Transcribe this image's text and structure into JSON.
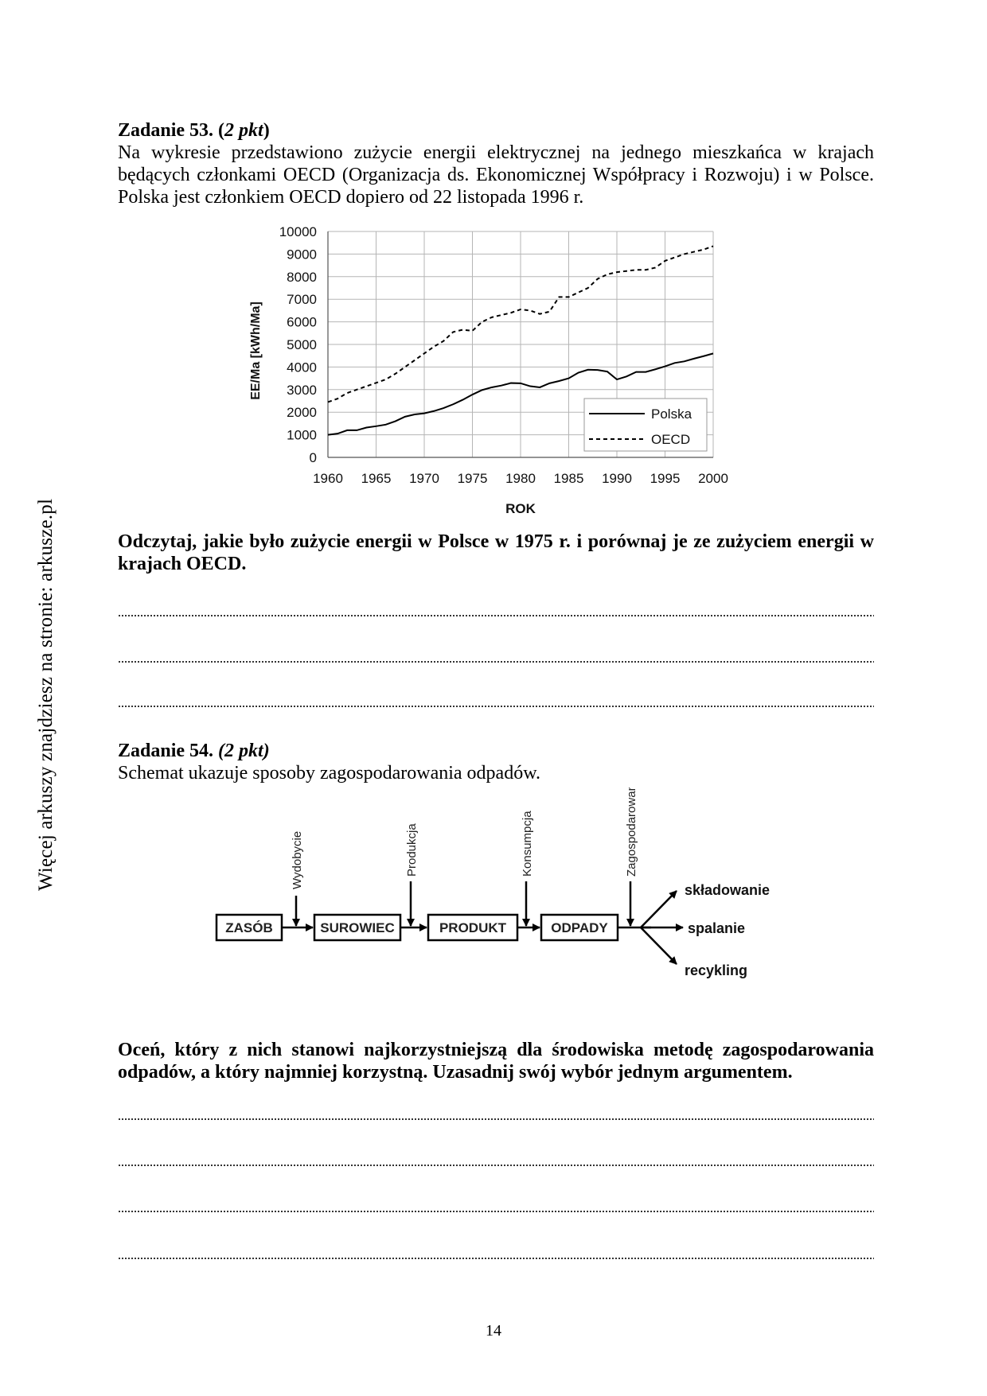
{
  "side_note": "Więcej arkuszy znajdziesz na stronie: arkusze.pl",
  "task53": {
    "title": "Zadanie 53.",
    "points": "2 pkt",
    "text": "Na wykresie przedstawiono zużycie energii elektrycznej na jednego mieszkańca w krajach będących członkami OECD (Organizacja ds. Ekonomicznej Współpracy i Rozwoju) i w Polsce. Polska jest członkiem OECD dopiero od 22 listopada 1996 r.",
    "question": "Odczytaj, jakie było zużycie energii w Polsce w 1975 r. i porównaj je ze zużyciem energii w krajach OECD."
  },
  "chart_data": {
    "type": "line",
    "title": "",
    "xlabel": "ROK",
    "ylabel": "EE/Ma [kWh/Ma]",
    "xlim": [
      1960,
      2000
    ],
    "ylim": [
      0,
      10000
    ],
    "x_ticks": [
      "1960",
      "1965",
      "1970",
      "1975",
      "1980",
      "1985",
      "1990",
      "1995",
      "2000"
    ],
    "y_ticks": [
      "0",
      "1000",
      "2000",
      "3000",
      "4000",
      "5000",
      "6000",
      "7000",
      "8000",
      "9000",
      "10000"
    ],
    "grid": true,
    "legend": "bottom-right",
    "x": [
      1960,
      1961,
      1962,
      1963,
      1964,
      1965,
      1966,
      1967,
      1968,
      1969,
      1970,
      1971,
      1972,
      1973,
      1974,
      1975,
      1976,
      1977,
      1978,
      1979,
      1980,
      1981,
      1982,
      1983,
      1984,
      1985,
      1986,
      1987,
      1988,
      1989,
      1990,
      1991,
      1992,
      1993,
      1994,
      1995,
      1996,
      1997,
      1998,
      1999,
      2000
    ],
    "series": [
      {
        "name": "Polska",
        "style": "solid",
        "values": [
          1000,
          1050,
          1200,
          1200,
          1320,
          1380,
          1450,
          1600,
          1800,
          1900,
          1950,
          2050,
          2180,
          2350,
          2550,
          2780,
          2980,
          3100,
          3180,
          3290,
          3280,
          3150,
          3100,
          3280,
          3380,
          3500,
          3750,
          3880,
          3870,
          3800,
          3450,
          3580,
          3780,
          3780,
          3900,
          4030,
          4180,
          4250,
          4370,
          4480,
          4600
        ]
      },
      {
        "name": "OECD",
        "style": "dashed",
        "values": [
          2450,
          2600,
          2850,
          3000,
          3150,
          3300,
          3450,
          3700,
          4000,
          4300,
          4600,
          4900,
          5150,
          5550,
          5650,
          5600,
          6000,
          6200,
          6300,
          6400,
          6550,
          6500,
          6350,
          6450,
          7100,
          7100,
          7300,
          7500,
          7900,
          8100,
          8200,
          8250,
          8300,
          8300,
          8400,
          8700,
          8850,
          9000,
          9100,
          9200,
          9350
        ]
      }
    ]
  },
  "task54": {
    "title": "Zadanie 54.",
    "points": "(2 pkt)",
    "text": "Schemat ukazuje sposoby zagospodarowania odpadów.",
    "question": "Oceń, który z nich stanowi najkorzystniejszą dla środowiska metodę zagospodarowania odpadów, a który najmniej korzystną. Uzasadnij swój wybór jednym argumentem."
  },
  "diagram": {
    "boxes": [
      "ZASÓB",
      "SUROWIEC",
      "PRODUKT",
      "ODPADY"
    ],
    "processes": [
      "Wydobycie",
      "Produkcja",
      "Konsumpcja",
      "Zagospodarowanie"
    ],
    "outcomes": [
      "składowanie",
      "spalanie",
      "recykling"
    ]
  },
  "page_number": "14"
}
